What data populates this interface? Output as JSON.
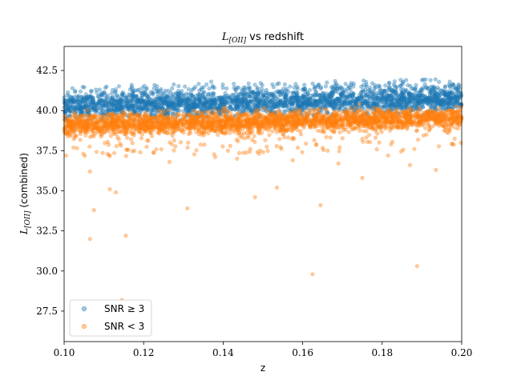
{
  "chart_data": {
    "type": "scatter",
    "title_main": "L",
    "title_sub": "[OII]",
    "title_rest": " vs redshift",
    "xlabel": "z",
    "ylabel_main": "L",
    "ylabel_sub": "[OII]",
    "ylabel_rest": " (combined)",
    "xlim": [
      0.1,
      0.2
    ],
    "ylim": [
      25.6,
      44.0
    ],
    "x_ticks": [
      0.1,
      0.12,
      0.14,
      0.16,
      0.18,
      0.2
    ],
    "x_tick_labels": [
      "0.10",
      "0.12",
      "0.14",
      "0.16",
      "0.18",
      "0.20"
    ],
    "y_ticks": [
      27.5,
      30.0,
      32.5,
      35.0,
      37.5,
      40.0,
      42.5
    ],
    "y_tick_labels": [
      "27.5",
      "30.0",
      "32.5",
      "35.0",
      "37.5",
      "40.0",
      "42.5"
    ],
    "grid": false,
    "legend_position": "lower-left",
    "series": [
      {
        "name": "SNR ≥ 3",
        "color": "#1f77b4",
        "band": {
          "y_center_start": 40.25,
          "y_center_end": 40.75,
          "y_spread": 0.55
        },
        "outliers": [
          {
            "x": 0.117,
            "y": 41.6
          },
          {
            "x": 0.137,
            "y": 41.8
          },
          {
            "x": 0.148,
            "y": 41.6
          },
          {
            "x": 0.154,
            "y": 41.7
          },
          {
            "x": 0.176,
            "y": 41.6
          },
          {
            "x": 0.186,
            "y": 41.9
          },
          {
            "x": 0.197,
            "y": 41.8
          },
          {
            "x": 0.163,
            "y": 41.5
          },
          {
            "x": 0.108,
            "y": 41.3
          }
        ]
      },
      {
        "name": "SNR < 3",
        "color": "#ff7f0e",
        "band": {
          "y_center_start": 39.1,
          "y_center_end": 39.55,
          "y_spread": 0.45
        },
        "outliers": [
          {
            "x": 0.1005,
            "y": 37.2
          },
          {
            "x": 0.1065,
            "y": 36.2
          },
          {
            "x": 0.1075,
            "y": 33.8
          },
          {
            "x": 0.1065,
            "y": 32.0
          },
          {
            "x": 0.1115,
            "y": 35.1
          },
          {
            "x": 0.113,
            "y": 34.9
          },
          {
            "x": 0.1155,
            "y": 32.2
          },
          {
            "x": 0.1145,
            "y": 28.2
          },
          {
            "x": 0.131,
            "y": 33.9
          },
          {
            "x": 0.138,
            "y": 37.1
          },
          {
            "x": 0.148,
            "y": 34.6
          },
          {
            "x": 0.1535,
            "y": 35.2
          },
          {
            "x": 0.1645,
            "y": 34.1
          },
          {
            "x": 0.1625,
            "y": 29.8
          },
          {
            "x": 0.175,
            "y": 35.8
          },
          {
            "x": 0.1888,
            "y": 30.3
          },
          {
            "x": 0.1935,
            "y": 36.3
          },
          {
            "x": 0.187,
            "y": 36.6
          },
          {
            "x": 0.1265,
            "y": 36.8
          },
          {
            "x": 0.1575,
            "y": 36.9
          },
          {
            "x": 0.169,
            "y": 36.7
          },
          {
            "x": 0.1815,
            "y": 37.2
          },
          {
            "x": 0.1225,
            "y": 37.4
          },
          {
            "x": 0.1435,
            "y": 37.0
          }
        ]
      }
    ]
  }
}
